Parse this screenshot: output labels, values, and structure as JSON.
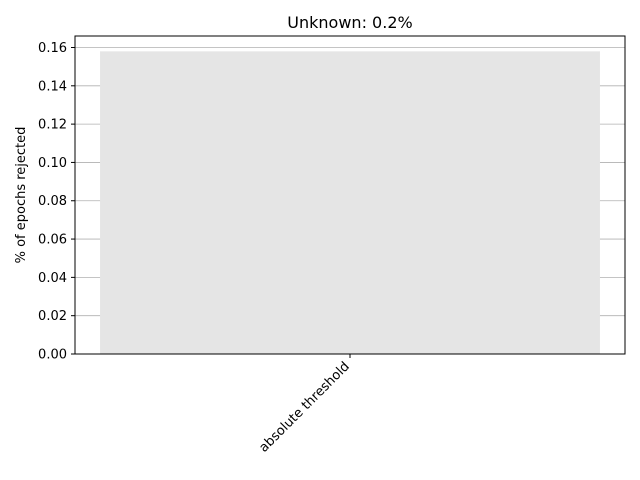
{
  "chart_data": {
    "type": "bar",
    "title": "Unknown: 0.2%",
    "xlabel": "",
    "ylabel": "% of epochs rejected",
    "categories": [
      "absolute threshold"
    ],
    "values": [
      0.158
    ],
    "ylim": [
      0,
      0.166
    ],
    "yticks": [
      0.0,
      0.02,
      0.04,
      0.06,
      0.08,
      0.1,
      0.12,
      0.14,
      0.16
    ],
    "ytick_labels": [
      "0.00",
      "0.02",
      "0.04",
      "0.06",
      "0.08",
      "0.10",
      "0.12",
      "0.14",
      "0.16"
    ],
    "grid": "y",
    "bar_color": "#e5e5e5",
    "grid_color": "#b0b0b0",
    "legend": "none"
  }
}
